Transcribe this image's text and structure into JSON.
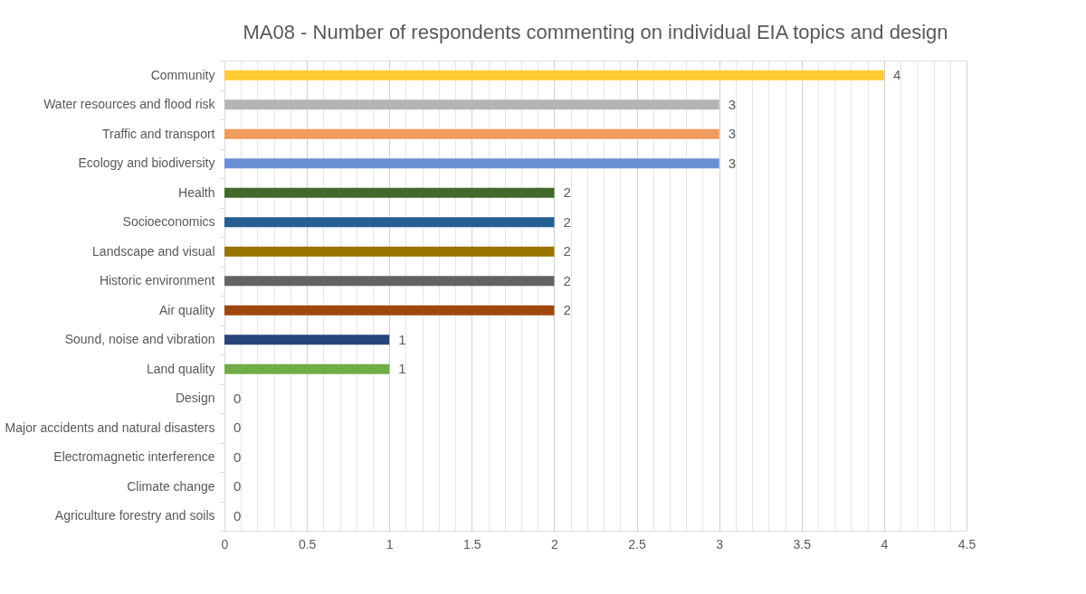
{
  "chart_data": {
    "type": "bar",
    "orientation": "horizontal",
    "title": "MA08 - Number of respondents commenting on individual EIA topics and design",
    "categories": [
      "Community",
      "Water resources and flood risk",
      "Traffic and transport",
      "Ecology and biodiversity",
      "Health",
      "Socioeconomics",
      "Landscape and visual",
      "Historic environment",
      "Air quality",
      "Sound, noise and vibration",
      "Land quality",
      "Design",
      "Major accidents and natural disasters",
      "Electromagnetic interference",
      "Climate change",
      "Agriculture forestry and soils"
    ],
    "values": [
      4,
      3,
      3,
      3,
      2,
      2,
      2,
      2,
      2,
      1,
      1,
      0,
      0,
      0,
      0,
      0
    ],
    "colors": [
      "#ffcd33",
      "#b4b4b4",
      "#f19b5e",
      "#6a8fd4",
      "#43682b",
      "#255e91",
      "#997300",
      "#636363",
      "#9e480e",
      "#264478",
      "#70ad47",
      "#4472c4",
      "#ed7d31",
      "#a5a5a5",
      "#ffc000",
      "#5b9bd5"
    ],
    "xlim": [
      0,
      4.5
    ],
    "xticks": [
      0,
      {
        "value": 0.1,
        "label": null
      },
      {
        "value": 0.2,
        "label": null
      },
      {
        "value": 0.3,
        "label": null
      },
      {
        "value": 0.4,
        "label": null
      },
      0.5,
      {
        "value": 0.6,
        "label": null
      },
      {
        "value": 0.7,
        "label": null
      },
      {
        "value": 0.8,
        "label": null
      },
      {
        "value": 0.9,
        "label": null
      },
      1,
      {
        "value": 1.1,
        "label": null
      },
      {
        "value": 1.2,
        "label": null
      },
      {
        "value": 1.3,
        "label": null
      },
      {
        "value": 1.4,
        "label": null
      },
      1.5,
      {
        "value": 1.6,
        "label": null
      },
      {
        "value": 1.7,
        "label": null
      },
      {
        "value": 1.8,
        "label": null
      },
      {
        "value": 1.9,
        "label": null
      },
      2,
      {
        "value": 2.1,
        "label": null
      },
      {
        "value": 2.2,
        "label": null
      },
      {
        "value": 2.3,
        "label": null
      },
      {
        "value": 2.4,
        "label": null
      },
      2.5,
      {
        "value": 2.6,
        "label": null
      },
      {
        "value": 2.7,
        "label": null
      },
      {
        "value": 2.8,
        "label": null
      },
      {
        "value": 2.9,
        "label": null
      },
      3,
      {
        "value": 3.1,
        "label": null
      },
      {
        "value": 3.2,
        "label": null
      },
      {
        "value": 3.3,
        "label": null
      },
      {
        "value": 3.4,
        "label": null
      },
      3.5,
      {
        "value": 3.6,
        "label": null
      },
      {
        "value": 3.7,
        "label": null
      },
      {
        "value": 3.8,
        "label": null
      },
      {
        "value": 3.9,
        "label": null
      },
      4,
      {
        "value": 4.1,
        "label": null
      },
      {
        "value": 4.2,
        "label": null
      },
      {
        "value": 4.3,
        "label": null
      },
      {
        "value": 4.4,
        "label": null
      },
      4.5
    ],
    "grid": "x",
    "data_labels": true
  }
}
